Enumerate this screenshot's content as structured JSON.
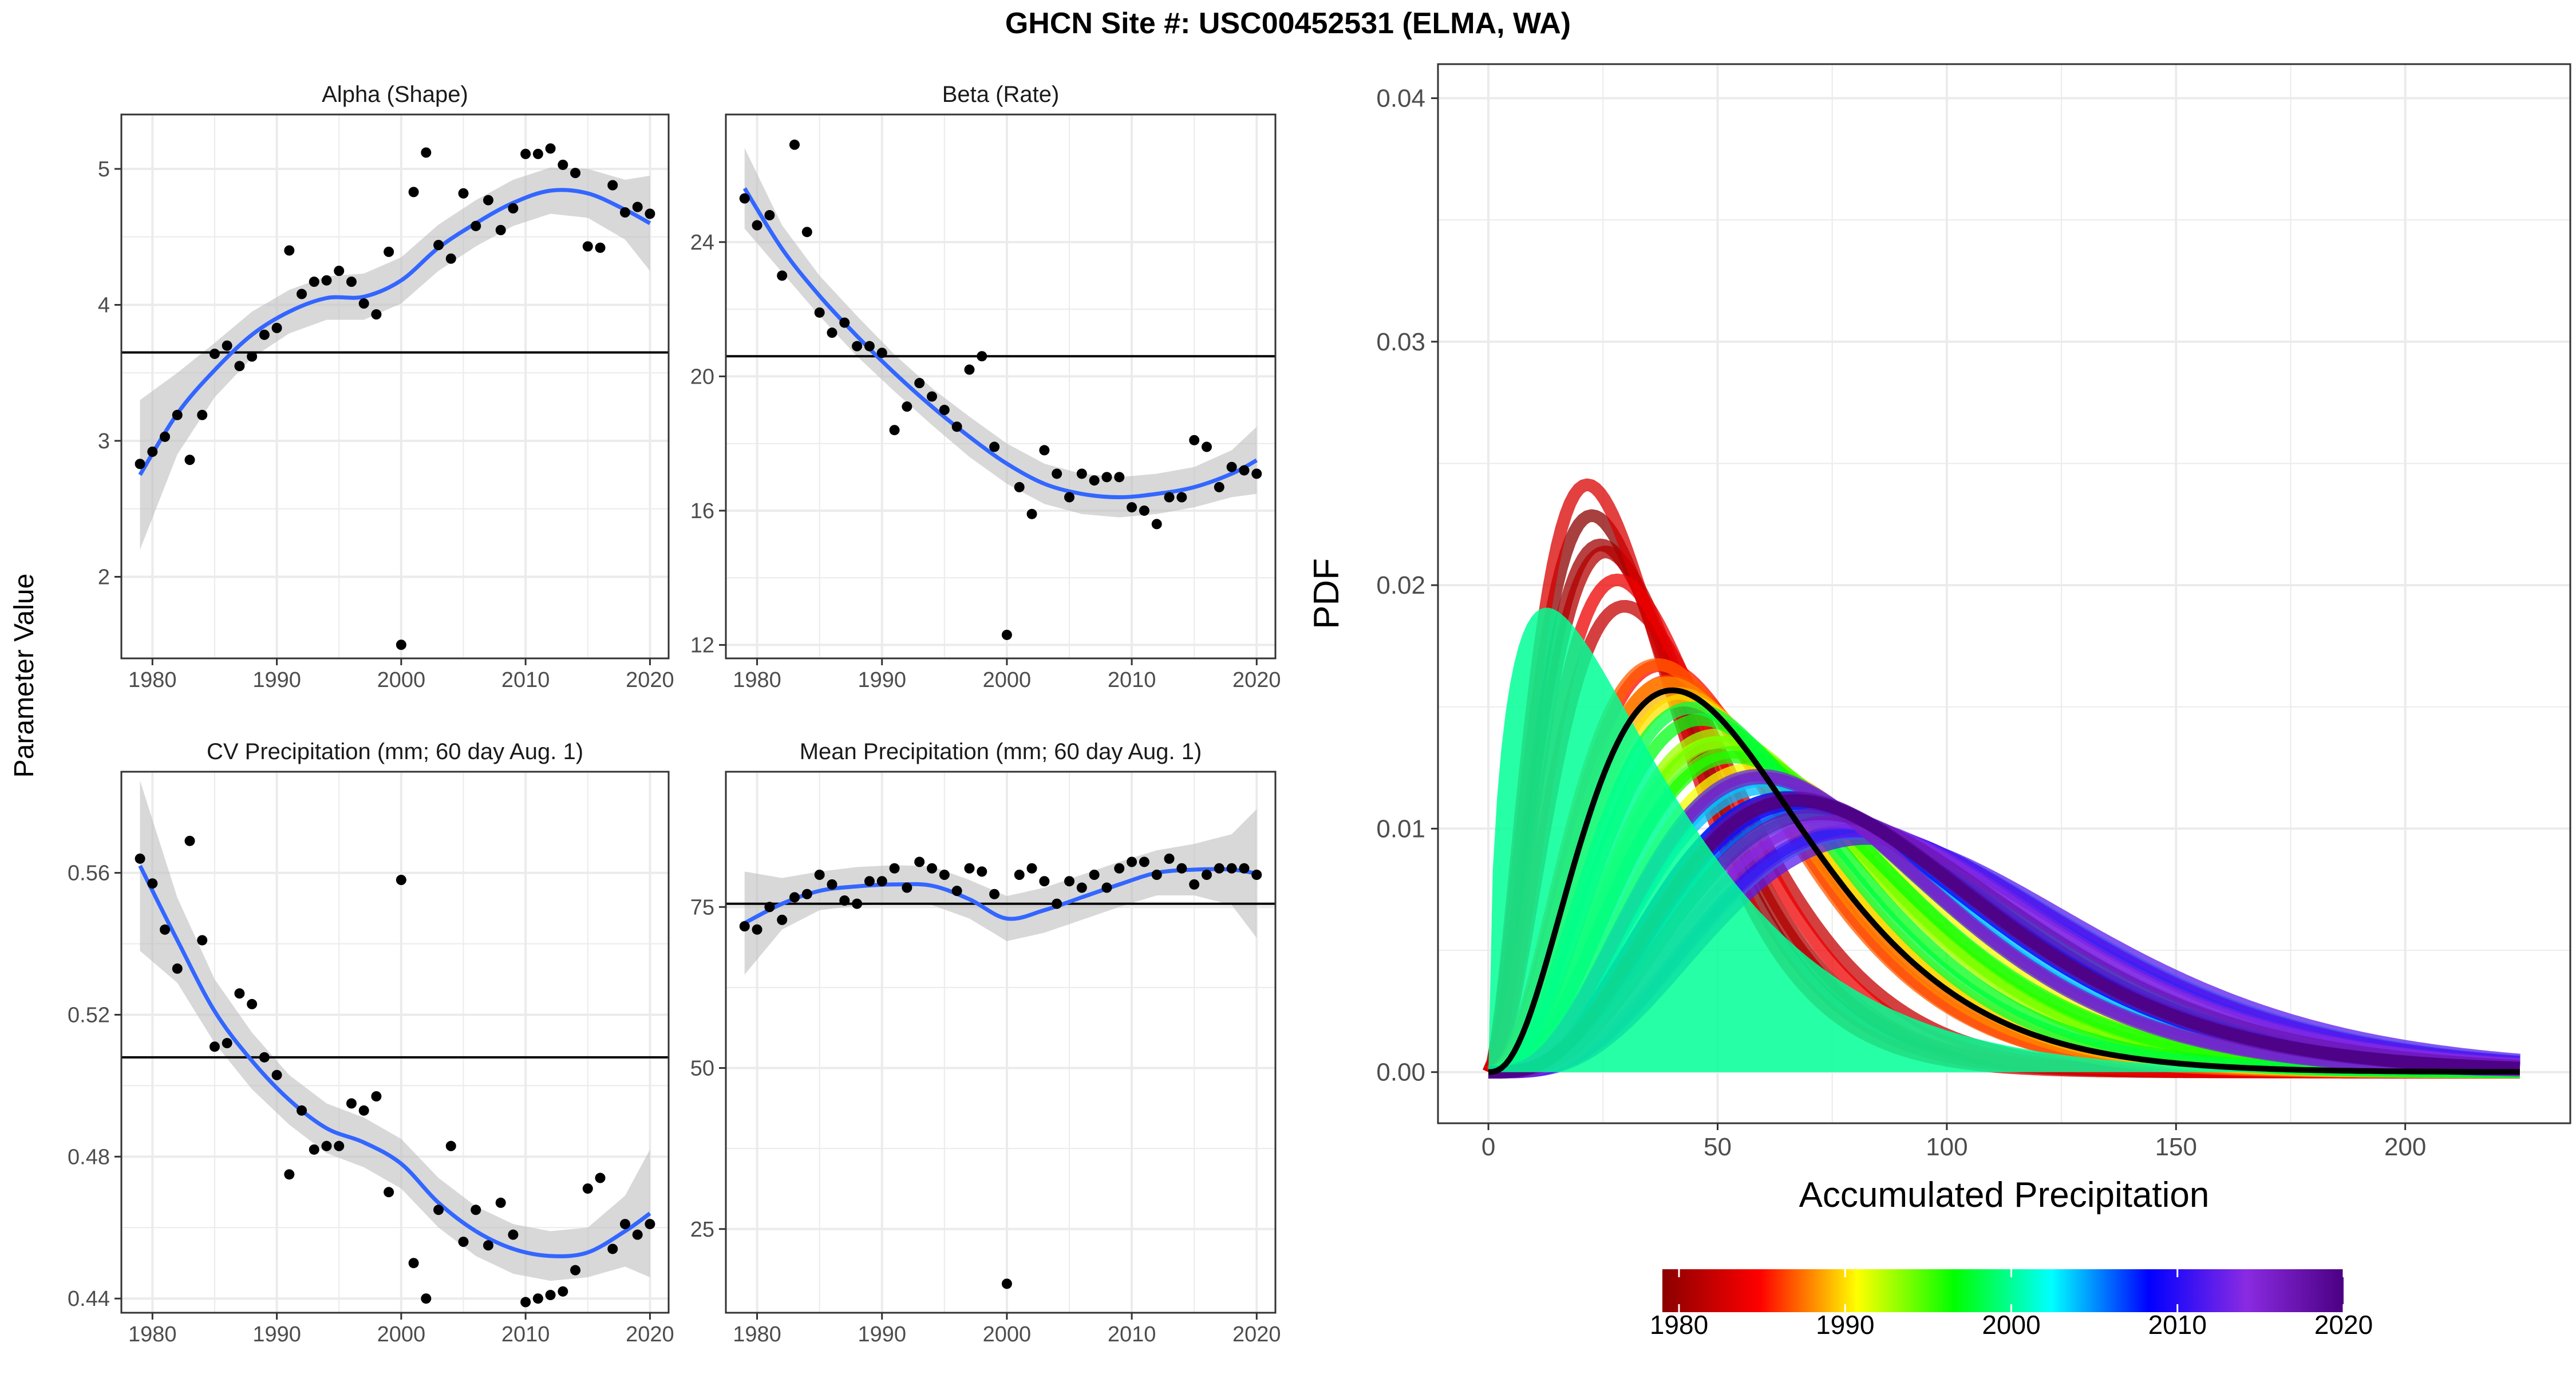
{
  "figure": {
    "title": "GHCN Site #: USC00452531 (ELMA, WA)",
    "shared_ylabel": "Parameter Value"
  },
  "colors": {
    "point": "#000000",
    "smooth": "#3366FF",
    "ribbon": "#BEBEBE",
    "hline": "#000000",
    "grid": "#EBEBEB",
    "panel_border": "#333333"
  },
  "chart_data": [
    {
      "id": "alpha",
      "type": "scatter",
      "title": "Alpha (Shape)",
      "xlim": [
        1977.5,
        2021.5
      ],
      "ylim": [
        1.4,
        5.4
      ],
      "xticks": [
        1980,
        1990,
        2000,
        2010,
        2020
      ],
      "yticks": [
        2,
        3,
        4,
        5
      ],
      "x": [
        1979,
        1980,
        1981,
        1982,
        1983,
        1984,
        1985,
        1986,
        1987,
        1988,
        1989,
        1990,
        1991,
        1992,
        1993,
        1994,
        1995,
        1996,
        1997,
        1998,
        1999,
        2000,
        2001,
        2002,
        2003,
        2004,
        2005,
        2006,
        2007,
        2008,
        2009,
        2010,
        2011,
        2012,
        2013,
        2014,
        2015,
        2016,
        2017,
        2018,
        2019,
        2020
      ],
      "y": [
        2.83,
        2.92,
        3.03,
        3.19,
        2.86,
        3.19,
        3.64,
        3.7,
        3.55,
        3.62,
        3.78,
        3.83,
        4.4,
        4.08,
        4.17,
        4.18,
        4.25,
        4.17,
        4.01,
        3.93,
        4.39,
        1.5,
        4.83,
        5.12,
        4.44,
        4.34,
        4.82,
        4.58,
        4.77,
        4.55,
        4.71,
        5.11,
        5.11,
        5.15,
        5.03,
        4.97,
        4.43,
        4.42,
        4.88,
        4.68,
        4.72,
        4.67
      ],
      "hline": 3.65,
      "smooth": {
        "x": [
          1979,
          1982,
          1985,
          1988,
          1991,
          1994,
          1997,
          2000,
          2003,
          2006,
          2009,
          2012,
          2015,
          2018,
          2020
        ],
        "y": [
          2.75,
          3.2,
          3.52,
          3.78,
          3.95,
          4.05,
          4.06,
          4.18,
          4.42,
          4.6,
          4.75,
          4.84,
          4.82,
          4.7,
          4.6
        ],
        "ci": [
          0.55,
          0.3,
          0.2,
          0.17,
          0.16,
          0.16,
          0.17,
          0.17,
          0.17,
          0.17,
          0.17,
          0.17,
          0.18,
          0.22,
          0.35
        ]
      }
    },
    {
      "id": "beta",
      "type": "scatter",
      "title": "Beta (Rate)",
      "xlim": [
        1977.5,
        2021.5
      ],
      "ylim": [
        11.6,
        27.8
      ],
      "xticks": [
        1980,
        1990,
        2000,
        2010,
        2020
      ],
      "yticks": [
        12,
        16,
        20,
        24
      ],
      "x": [
        1979,
        1980,
        1981,
        1982,
        1983,
        1984,
        1985,
        1986,
        1987,
        1988,
        1989,
        1990,
        1991,
        1992,
        1993,
        1994,
        1995,
        1996,
        1997,
        1998,
        1999,
        2000,
        2001,
        2002,
        2003,
        2004,
        2005,
        2006,
        2007,
        2008,
        2009,
        2010,
        2011,
        2012,
        2013,
        2014,
        2015,
        2016,
        2017,
        2018,
        2019,
        2020
      ],
      "y": [
        25.3,
        24.5,
        24.8,
        23.0,
        26.9,
        24.3,
        21.9,
        21.3,
        21.6,
        20.9,
        20.9,
        20.7,
        18.4,
        19.1,
        19.8,
        19.4,
        19.0,
        18.5,
        20.2,
        20.6,
        17.9,
        12.3,
        16.7,
        15.9,
        17.8,
        17.1,
        16.4,
        17.1,
        16.9,
        17.0,
        17.0,
        16.1,
        16.0,
        15.6,
        16.4,
        16.4,
        18.1,
        17.9,
        16.7,
        17.3,
        17.2,
        17.1
      ],
      "hline": 20.6,
      "smooth": {
        "x": [
          1979,
          1982,
          1985,
          1988,
          1991,
          1994,
          1997,
          2000,
          2003,
          2006,
          2009,
          2012,
          2015,
          2018,
          2020
        ],
        "y": [
          25.6,
          23.8,
          22.4,
          21.2,
          20.1,
          19.1,
          18.2,
          17.4,
          16.8,
          16.5,
          16.4,
          16.5,
          16.7,
          17.1,
          17.5
        ],
        "ci": [
          1.2,
          0.7,
          0.6,
          0.6,
          0.55,
          0.55,
          0.6,
          0.6,
          0.6,
          0.6,
          0.6,
          0.6,
          0.6,
          0.7,
          1.0
        ]
      }
    },
    {
      "id": "cv",
      "type": "scatter",
      "title": "CV Precipitation (mm; 60 day Aug. 1)",
      "xlim": [
        1977.5,
        2021.5
      ],
      "ylim": [
        0.436,
        0.5885
      ],
      "xticks": [
        1980,
        1990,
        2000,
        2010,
        2020
      ],
      "yticks": [
        0.44,
        0.48,
        0.52,
        0.56
      ],
      "ytick_labels": [
        "0.44",
        "0.48",
        "0.52",
        "0.56"
      ],
      "x": [
        1979,
        1980,
        1981,
        1982,
        1983,
        1984,
        1985,
        1986,
        1987,
        1988,
        1989,
        1990,
        1991,
        1992,
        1993,
        1994,
        1995,
        1996,
        1997,
        1998,
        1999,
        2000,
        2001,
        2002,
        2003,
        2004,
        2005,
        2006,
        2007,
        2008,
        2009,
        2010,
        2011,
        2012,
        2013,
        2014,
        2015,
        2016,
        2017,
        2018,
        2019,
        2020
      ],
      "y": [
        0.564,
        0.557,
        0.544,
        0.533,
        0.569,
        0.541,
        0.511,
        0.512,
        0.526,
        0.523,
        0.508,
        0.503,
        0.475,
        0.493,
        0.482,
        0.483,
        0.483,
        0.495,
        0.493,
        0.497,
        0.47,
        0.558,
        0.45,
        0.44,
        0.465,
        0.483,
        0.456,
        0.465,
        0.455,
        0.467,
        0.458,
        0.439,
        0.44,
        0.441,
        0.442,
        0.448,
        0.471,
        0.474,
        0.454,
        0.461,
        0.458,
        0.461
      ],
      "hline": 0.508,
      "smooth": {
        "x": [
          1979,
          1982,
          1985,
          1988,
          1991,
          1994,
          1997,
          2000,
          2003,
          2006,
          2009,
          2012,
          2015,
          2018,
          2020
        ],
        "y": [
          0.562,
          0.541,
          0.521,
          0.507,
          0.496,
          0.488,
          0.484,
          0.478,
          0.467,
          0.459,
          0.454,
          0.452,
          0.453,
          0.459,
          0.464
        ],
        "ci": [
          0.024,
          0.012,
          0.009,
          0.008,
          0.007,
          0.007,
          0.007,
          0.007,
          0.007,
          0.007,
          0.007,
          0.007,
          0.007,
          0.01,
          0.018
        ]
      }
    },
    {
      "id": "mean",
      "type": "scatter",
      "title": "Mean Precipitation (mm; 60 day Aug. 1)",
      "xlim": [
        1977.5,
        2021.5
      ],
      "ylim": [
        12,
        96
      ],
      "xticks": [
        1980,
        1990,
        2000,
        2010,
        2020
      ],
      "yticks": [
        25,
        50,
        75
      ],
      "x": [
        1979,
        1980,
        1981,
        1982,
        1983,
        1984,
        1985,
        1986,
        1987,
        1988,
        1989,
        1990,
        1991,
        1992,
        1993,
        1994,
        1995,
        1996,
        1997,
        1998,
        1999,
        2000,
        2001,
        2002,
        2003,
        2004,
        2005,
        2006,
        2007,
        2008,
        2009,
        2010,
        2011,
        2012,
        2013,
        2014,
        2015,
        2016,
        2017,
        2018,
        2019,
        2020
      ],
      "y": [
        72,
        71.5,
        75,
        73,
        76.5,
        77,
        80,
        78.5,
        76,
        75.5,
        79,
        79,
        81,
        78,
        82,
        81,
        80,
        77.5,
        81,
        80.5,
        77,
        16.5,
        80,
        81,
        79,
        75.5,
        79,
        78,
        80,
        78,
        81,
        82,
        82,
        80,
        82.5,
        81,
        78.5,
        80,
        81,
        81,
        81,
        80
      ],
      "hline": 75.5,
      "smooth": {
        "x": [
          1979,
          1982,
          1985,
          1988,
          1991,
          1994,
          1997,
          2000,
          2003,
          2006,
          2009,
          2012,
          2015,
          2018,
          2020
        ],
        "y": [
          72.5,
          75.5,
          77.5,
          78.2,
          78.5,
          78.3,
          76.2,
          73.2,
          74.5,
          76.5,
          78.5,
          80.3,
          80.8,
          80.8,
          80.2
        ],
        "ci": [
          8.0,
          4.0,
          3.0,
          3.0,
          3.0,
          3.0,
          3.0,
          3.5,
          3.5,
          3.5,
          3.5,
          3.5,
          4.0,
          5.5,
          10.0
        ]
      }
    },
    {
      "id": "pdf",
      "type": "line",
      "xlabel": "Accumulated Precipitation",
      "ylabel": "PDF",
      "xlim": [
        -11,
        236
      ],
      "ylim": [
        -0.0021,
        0.0414
      ],
      "xticks": [
        0,
        50,
        100,
        150,
        200
      ],
      "yticks": [
        0,
        0.01,
        0.02,
        0.03,
        0.04
      ],
      "ytick_labels": [
        "0.00",
        "0.01",
        "0.02",
        "0.03",
        "0.04"
      ],
      "x_range": [
        0,
        225
      ],
      "overall_curve": {
        "shape": 3.65,
        "rate": 20.6,
        "scale_factor": 312,
        "color": "#000000"
      },
      "outlier_year": {
        "year": 2000,
        "shape": 1.5,
        "rate": 12.3,
        "scale_factor": 312
      },
      "curves": {
        "source_panel": "alpha",
        "rate_source_panel": "beta",
        "scale_factor": 312
      },
      "colorbar": {
        "stops": [
          "#8B0000",
          "#FF0000",
          "#FFFF00",
          "#00FF00",
          "#00FFFF",
          "#0000FF",
          "#8A2BE2",
          "#4B0082"
        ],
        "ticks": [
          1980,
          1990,
          2000,
          2010,
          2020
        ],
        "range": [
          1979,
          2020
        ]
      }
    }
  ]
}
